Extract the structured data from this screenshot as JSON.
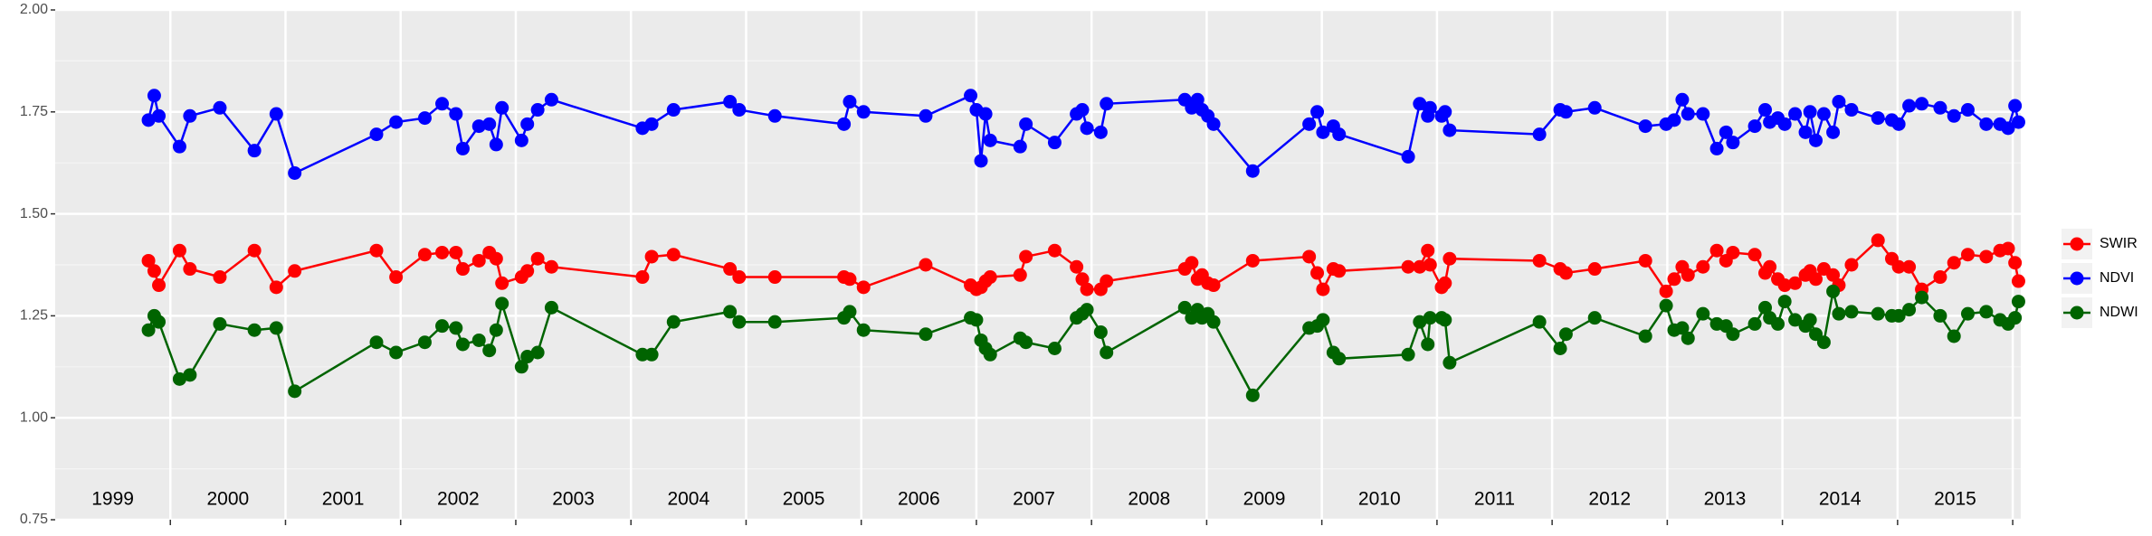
{
  "chart_data": {
    "type": "line",
    "x": [
      1999.81,
      1999.86,
      1999.9,
      2000.08,
      2000.17,
      2000.43,
      2000.73,
      2000.92,
      2001.08,
      2001.79,
      2001.96,
      2002.21,
      2002.36,
      2002.48,
      2002.54,
      2002.68,
      2002.77,
      2002.83,
      2002.88,
      2003.05,
      2003.1,
      2003.19,
      2003.31,
      2004.1,
      2004.18,
      2004.37,
      2004.86,
      2004.94,
      2005.25,
      2005.85,
      2005.9,
      2006.02,
      2006.56,
      2006.95,
      2007.0,
      2007.04,
      2007.08,
      2007.12,
      2007.38,
      2007.43,
      2007.68,
      2007.87,
      2007.92,
      2007.96,
      2008.08,
      2008.13,
      2008.81,
      2008.87,
      2008.92,
      2008.96,
      2009.01,
      2009.06,
      2009.4,
      2009.89,
      2009.96,
      2010.01,
      2010.1,
      2010.15,
      2010.75,
      2010.85,
      2010.92,
      2010.94,
      2011.04,
      2011.07,
      2011.11,
      2011.89,
      2012.07,
      2012.12,
      2012.37,
      2012.81,
      2012.99,
      2013.06,
      2013.13,
      2013.18,
      2013.31,
      2013.43,
      2013.51,
      2013.57,
      2013.76,
      2013.85,
      2013.89,
      2013.96,
      2014.02,
      2014.11,
      2014.2,
      2014.24,
      2014.29,
      2014.36,
      2014.44,
      2014.49,
      2014.6,
      2014.83,
      2014.95,
      2015.01,
      2015.1,
      2015.21,
      2015.37,
      2015.49,
      2015.61,
      2015.77,
      2015.89,
      2015.96,
      2016.02,
      2016.05
    ],
    "series": [
      {
        "name": "SWIR",
        "color": "#ff0000",
        "values": [
          1.385,
          1.36,
          1.325,
          1.41,
          1.365,
          1.345,
          1.41,
          1.32,
          1.36,
          1.41,
          1.345,
          1.4,
          1.405,
          1.405,
          1.365,
          1.385,
          1.405,
          1.39,
          1.33,
          1.345,
          1.36,
          1.39,
          1.37,
          1.345,
          1.395,
          1.4,
          1.365,
          1.345,
          1.345,
          1.345,
          1.34,
          1.32,
          1.375,
          1.325,
          1.315,
          1.32,
          1.335,
          1.345,
          1.35,
          1.395,
          1.41,
          1.37,
          1.34,
          1.315,
          1.315,
          1.335,
          1.365,
          1.38,
          1.34,
          1.35,
          1.33,
          1.325,
          1.385,
          1.395,
          1.355,
          1.315,
          1.365,
          1.36,
          1.37,
          1.37,
          1.41,
          1.375,
          1.32,
          1.33,
          1.39,
          1.385,
          1.365,
          1.355,
          1.365,
          1.385,
          1.31,
          1.34,
          1.37,
          1.35,
          1.37,
          1.41,
          1.385,
          1.405,
          1.4,
          1.355,
          1.37,
          1.34,
          1.325,
          1.33,
          1.35,
          1.36,
          1.34,
          1.365,
          1.35,
          1.325,
          1.375,
          1.435,
          1.39,
          1.37,
          1.37,
          1.315,
          1.345,
          1.38,
          1.4,
          1.395,
          1.41,
          1.415,
          1.38,
          1.335
        ]
      },
      {
        "name": "NDVI",
        "color": "#0000ff",
        "values": [
          1.73,
          1.79,
          1.74,
          1.665,
          1.74,
          1.76,
          1.655,
          1.745,
          1.6,
          1.695,
          1.725,
          1.735,
          1.77,
          1.745,
          1.66,
          1.715,
          1.72,
          1.67,
          1.76,
          1.68,
          1.72,
          1.755,
          1.78,
          1.71,
          1.72,
          1.755,
          1.775,
          1.755,
          1.74,
          1.72,
          1.775,
          1.75,
          1.74,
          1.79,
          1.755,
          1.63,
          1.745,
          1.68,
          1.665,
          1.72,
          1.675,
          1.745,
          1.755,
          1.71,
          1.7,
          1.77,
          1.78,
          1.76,
          1.78,
          1.755,
          1.74,
          1.72,
          1.605,
          1.72,
          1.75,
          1.7,
          1.715,
          1.695,
          1.64,
          1.77,
          1.74,
          1.76,
          1.74,
          1.75,
          1.705,
          1.695,
          1.755,
          1.75,
          1.76,
          1.715,
          1.72,
          1.73,
          1.78,
          1.745,
          1.745,
          1.66,
          1.7,
          1.675,
          1.715,
          1.755,
          1.725,
          1.735,
          1.72,
          1.745,
          1.7,
          1.75,
          1.68,
          1.745,
          1.7,
          1.775,
          1.755,
          1.735,
          1.73,
          1.72,
          1.765,
          1.77,
          1.76,
          1.74,
          1.755,
          1.72,
          1.72,
          1.71,
          1.765,
          1.725
        ]
      },
      {
        "name": "NDWI",
        "color": "#006400",
        "values": [
          1.215,
          1.25,
          1.235,
          1.095,
          1.105,
          1.23,
          1.215,
          1.22,
          1.065,
          1.185,
          1.16,
          1.185,
          1.225,
          1.22,
          1.18,
          1.19,
          1.165,
          1.215,
          1.28,
          1.125,
          1.15,
          1.16,
          1.27,
          1.155,
          1.155,
          1.235,
          1.26,
          1.235,
          1.235,
          1.245,
          1.26,
          1.215,
          1.205,
          1.245,
          1.24,
          1.19,
          1.17,
          1.155,
          1.195,
          1.185,
          1.17,
          1.245,
          1.255,
          1.265,
          1.21,
          1.16,
          1.27,
          1.245,
          1.265,
          1.245,
          1.255,
          1.235,
          1.055,
          1.22,
          1.225,
          1.24,
          1.16,
          1.145,
          1.155,
          1.235,
          1.18,
          1.245,
          1.245,
          1.24,
          1.135,
          1.235,
          1.17,
          1.205,
          1.245,
          1.2,
          1.275,
          1.215,
          1.22,
          1.195,
          1.255,
          1.23,
          1.225,
          1.205,
          1.23,
          1.27,
          1.245,
          1.23,
          1.285,
          1.24,
          1.225,
          1.24,
          1.205,
          1.185,
          1.31,
          1.255,
          1.26,
          1.255,
          1.25,
          1.25,
          1.265,
          1.295,
          1.25,
          1.2,
          1.255,
          1.26,
          1.24,
          1.23,
          1.245,
          1.285
        ]
      }
    ],
    "xlim": [
      1999.0,
      2016.07
    ],
    "xticks": [
      2000,
      2001,
      2002,
      2003,
      2004,
      2005,
      2006,
      2007,
      2008,
      2009,
      2010,
      2011,
      2012,
      2013,
      2014,
      2015,
      2016
    ],
    "year_labels": [
      "1999",
      "2000",
      "2001",
      "2002",
      "2003",
      "2004",
      "2005",
      "2006",
      "2007",
      "2008",
      "2009",
      "2010",
      "2011",
      "2012",
      "2013",
      "2014",
      "2015"
    ],
    "ylim": [
      0.75,
      2.0
    ],
    "yticks": [
      {
        "value": 0.75,
        "label": "0.75"
      },
      {
        "value": 1.0,
        "label": "1.00"
      },
      {
        "value": 1.25,
        "label": "1.25"
      },
      {
        "value": 1.5,
        "label": "1.50"
      },
      {
        "value": 1.75,
        "label": "1.75"
      },
      {
        "value": 2.0,
        "label": "2.00"
      }
    ],
    "grid": true,
    "legend": "right"
  }
}
